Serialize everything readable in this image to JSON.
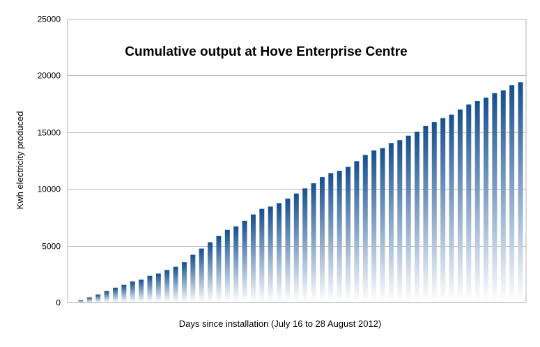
{
  "chart_data": {
    "type": "bar",
    "title": "Cumulative output at Hove Enterprise Centre",
    "xlabel": "Days since installation (July 16 to 28 August 2012)",
    "ylabel": "Kwh electricity produced",
    "ylim": [
      0,
      25000
    ],
    "yticks": [
      0,
      5000,
      10000,
      15000,
      20000,
      25000
    ],
    "grid": true,
    "legend": "none",
    "bar_color_top": "#154f8f",
    "bar_color_bottom": "#ffffff",
    "series": [
      {
        "values": [
          200,
          450,
          700,
          1000,
          1300,
          1550,
          1850,
          2000,
          2350,
          2550,
          2850,
          3150,
          3550,
          4200,
          4750,
          5300,
          5850,
          6400,
          6700,
          7200,
          7750,
          8250,
          8450,
          8750,
          9150,
          9600,
          10050,
          10500,
          11050,
          11400,
          11600,
          11950,
          12450,
          13000,
          13400,
          13600,
          14050,
          14300,
          14700,
          15050,
          15550,
          15900,
          16250,
          16550,
          17000,
          17450,
          17750,
          18050,
          18450,
          18700,
          19150,
          19400
        ]
      }
    ]
  }
}
